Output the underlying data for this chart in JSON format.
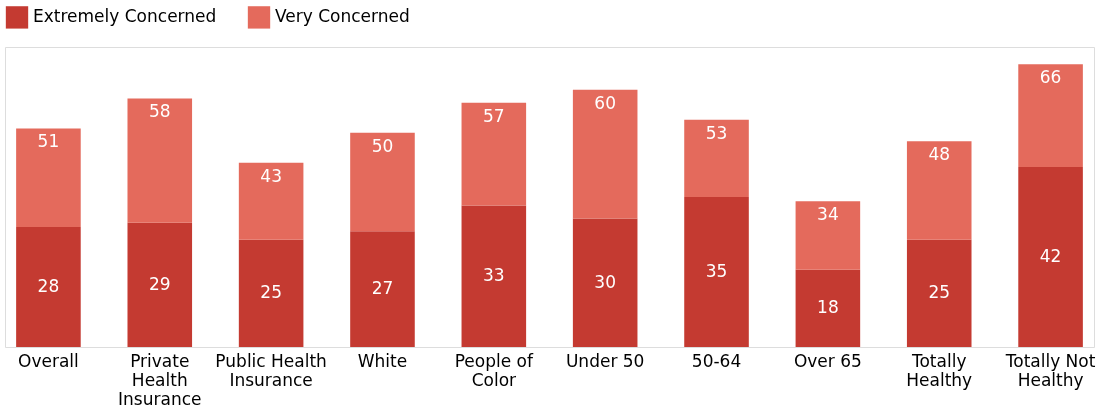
{
  "chart_data": {
    "type": "bar",
    "stacked": true,
    "legend": "top",
    "categories": [
      "Overall",
      "Private Health Insurance",
      "Public Health Insurance",
      "White",
      "People of Color",
      "Under 50",
      "50-64",
      "Over 65",
      "Totally Healthy",
      "Totally Not Healthy"
    ],
    "series": [
      {
        "name": "Extremely Concerned",
        "color": "#c43a31",
        "values": [
          28,
          29,
          25,
          27,
          33,
          30,
          35,
          18,
          25,
          42
        ],
        "value_labels": [
          "28",
          "29",
          "25",
          "27",
          "33",
          "30",
          "35",
          "18",
          "25",
          "42"
        ]
      },
      {
        "name": "Very Concerned",
        "color": "#e46a5c",
        "values": [
          23,
          29,
          18,
          23,
          24,
          30,
          18,
          16,
          23,
          24
        ]
      }
    ],
    "totals": [
      "51",
      "58",
      "43",
      "50",
      "57",
      "60",
      "53",
      "34",
      "48",
      "66"
    ]
  }
}
